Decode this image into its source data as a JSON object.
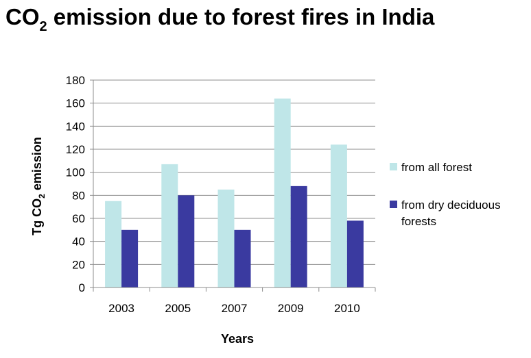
{
  "title": {
    "prefix": "CO",
    "subscript": "2",
    "suffix": " emission due to forest fires in India"
  },
  "chart_data": {
    "type": "bar",
    "categories": [
      "2003",
      "2005",
      "2007",
      "2009",
      "2010"
    ],
    "series": [
      {
        "name": "from all forest",
        "values": [
          75,
          107,
          85,
          164,
          124
        ]
      },
      {
        "name": "from dry deciduous forests",
        "values": [
          50,
          80,
          50,
          88,
          58
        ]
      }
    ],
    "xlabel": "Years",
    "ylabel": {
      "prefix": "Tg CO",
      "subscript": "2",
      "suffix": " emission"
    },
    "ylim": [
      0,
      180
    ],
    "yticks": [
      0,
      20,
      40,
      60,
      80,
      100,
      120,
      140,
      160,
      180
    ],
    "grid": true,
    "legend_position": "right",
    "legend_lines": [
      [
        "from all forest"
      ],
      [
        "from dry deciduous",
        "forests"
      ]
    ],
    "colors": [
      "#bfe6e8",
      "#3a3aa0"
    ]
  }
}
